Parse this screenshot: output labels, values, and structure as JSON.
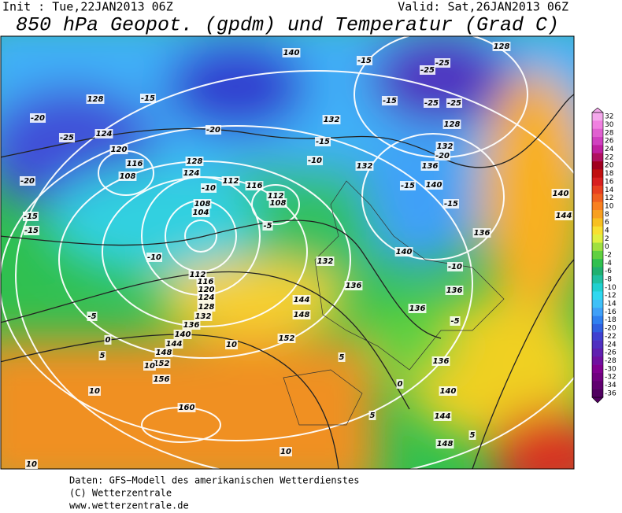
{
  "header": {
    "init": "Init : Tue,22JAN2013 06Z",
    "valid": "Valid: Sat,26JAN2013 06Z",
    "title": "850 hPa Geopot. (gpdm) und Temperatur (Grad C)"
  },
  "colorbar": {
    "ticks": [
      32,
      30,
      28,
      26,
      24,
      22,
      20,
      18,
      16,
      14,
      12,
      10,
      8,
      6,
      4,
      2,
      0,
      -2,
      -4,
      -6,
      -8,
      -10,
      -12,
      -14,
      -16,
      -18,
      -20,
      -22,
      -24,
      -26,
      -28,
      -30,
      -32,
      -34,
      -36
    ],
    "colors": [
      "#f5a8ec",
      "#f080e0",
      "#e060d0",
      "#d040c0",
      "#c020a0",
      "#b01060",
      "#a00020",
      "#c01010",
      "#d82020",
      "#e84020",
      "#f06020",
      "#f88020",
      "#f8a020",
      "#f8c020",
      "#f8e030",
      "#e0f040",
      "#a0e040",
      "#60d040",
      "#30c050",
      "#20b070",
      "#20c0a0",
      "#20d0d0",
      "#30d8f0",
      "#40c0f8",
      "#40a0f8",
      "#3080f0",
      "#3060e0",
      "#4040d0",
      "#5030c0",
      "#6020b0",
      "#7010a0",
      "#800090",
      "#700080",
      "#600070",
      "#500060"
    ]
  },
  "contour_labels": [
    140,
    128,
    -25,
    -25,
    -15,
    -15,
    -25,
    -25,
    128,
    132,
    -20,
    136,
    140,
    -15,
    -15,
    140,
    144,
    136,
    140,
    -10,
    136,
    136,
    -5,
    136,
    140,
    144,
    148,
    5,
    5,
    10,
    10,
    160,
    156,
    152,
    148,
    144,
    140,
    136,
    10,
    10,
    10,
    5,
    0,
    -5,
    152,
    148,
    144,
    132,
    136,
    132,
    -10,
    -15,
    132,
    -10,
    -15,
    -15,
    -20,
    -25,
    -20,
    124,
    120,
    116,
    108,
    112,
    116,
    112,
    108,
    -5,
    108,
    104,
    112,
    116,
    120,
    124,
    128,
    132,
    128,
    -15,
    -20,
    124,
    128,
    -10,
    5,
    0
  ],
  "footer": {
    "source": "Daten: GFS−Modell des amerikanischen Wetterdienstes",
    "copyright": "(C) Wetterzentrale",
    "url": "www.wetterzentrale.de"
  }
}
